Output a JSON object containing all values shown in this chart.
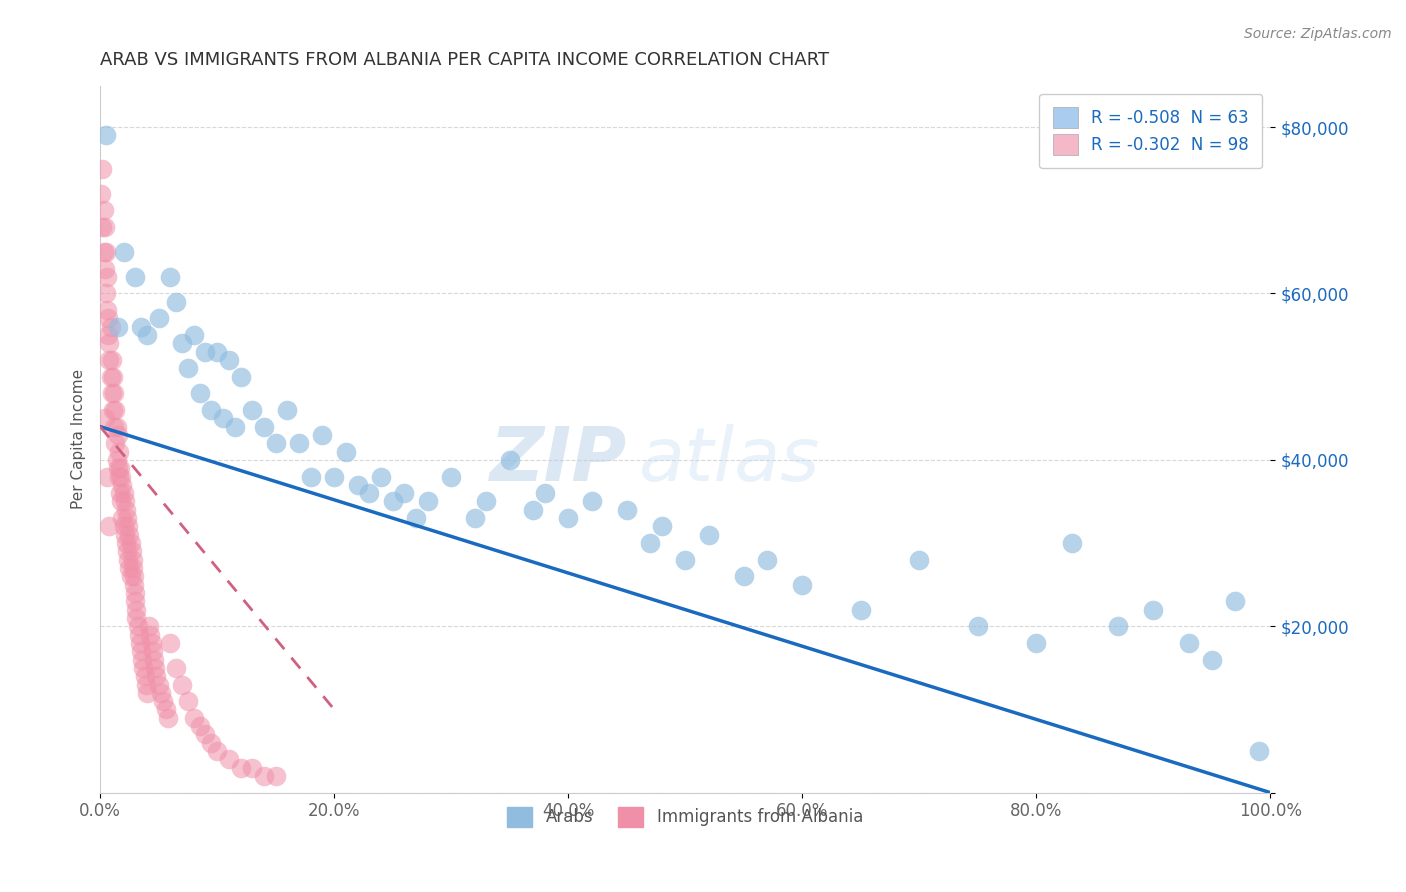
{
  "title": "ARAB VS IMMIGRANTS FROM ALBANIA PER CAPITA INCOME CORRELATION CHART",
  "source": "Source: ZipAtlas.com",
  "ylabel": "Per Capita Income",
  "xlabel": "",
  "xlim": [
    0,
    1.0
  ],
  "ylim": [
    0,
    85000
  ],
  "yticks": [
    0,
    20000,
    40000,
    60000,
    80000
  ],
  "ytick_labels": [
    "",
    "$20,000",
    "$40,000",
    "$60,000",
    "$80,000"
  ],
  "xtick_labels": [
    "0.0%",
    "20.0%",
    "40.0%",
    "60.0%",
    "80.0%",
    "100.0%"
  ],
  "xticks": [
    0,
    0.2,
    0.4,
    0.6,
    0.8,
    1.0
  ],
  "legend_entries": [
    {
      "label": "R = -0.508  N = 63",
      "facecolor": "#aaccee",
      "series": "Arabs"
    },
    {
      "label": "R = -0.302  N = 98",
      "facecolor": "#f4b8c8",
      "series": "Immigrants from Albania"
    }
  ],
  "arab_scatter_color": "#90bce0",
  "albania_scatter_color": "#f090a8",
  "arab_line_color": "#1a6abf",
  "albania_line_color": "#d06080",
  "watermark_zip": "ZIP",
  "watermark_atlas": "atlas",
  "watermark_color": "#c8ddf0",
  "background_color": "#ffffff",
  "grid_color": "#d8d8d8",
  "title_color": "#333333",
  "title_fontsize": 13,
  "arab_x": [
    0.005,
    0.015,
    0.02,
    0.03,
    0.035,
    0.04,
    0.05,
    0.06,
    0.065,
    0.07,
    0.075,
    0.08,
    0.085,
    0.09,
    0.095,
    0.1,
    0.105,
    0.11,
    0.115,
    0.12,
    0.13,
    0.14,
    0.15,
    0.16,
    0.17,
    0.18,
    0.19,
    0.2,
    0.21,
    0.22,
    0.23,
    0.24,
    0.25,
    0.26,
    0.27,
    0.28,
    0.3,
    0.32,
    0.33,
    0.35,
    0.37,
    0.38,
    0.4,
    0.42,
    0.45,
    0.47,
    0.48,
    0.5,
    0.52,
    0.55,
    0.57,
    0.6,
    0.65,
    0.7,
    0.75,
    0.8,
    0.83,
    0.87,
    0.9,
    0.93,
    0.95,
    0.97,
    0.99
  ],
  "arab_y": [
    79000,
    56000,
    65000,
    62000,
    56000,
    55000,
    57000,
    62000,
    59000,
    54000,
    51000,
    55000,
    48000,
    53000,
    46000,
    53000,
    45000,
    52000,
    44000,
    50000,
    46000,
    44000,
    42000,
    46000,
    42000,
    38000,
    43000,
    38000,
    41000,
    37000,
    36000,
    38000,
    35000,
    36000,
    33000,
    35000,
    38000,
    33000,
    35000,
    40000,
    34000,
    36000,
    33000,
    35000,
    34000,
    30000,
    32000,
    28000,
    31000,
    26000,
    28000,
    25000,
    22000,
    28000,
    20000,
    18000,
    30000,
    20000,
    22000,
    18000,
    16000,
    23000,
    5000
  ],
  "albania_x": [
    0.001,
    0.002,
    0.003,
    0.003,
    0.004,
    0.004,
    0.005,
    0.005,
    0.006,
    0.006,
    0.007,
    0.007,
    0.008,
    0.008,
    0.009,
    0.009,
    0.01,
    0.01,
    0.011,
    0.011,
    0.012,
    0.012,
    0.013,
    0.013,
    0.014,
    0.014,
    0.015,
    0.015,
    0.016,
    0.016,
    0.017,
    0.017,
    0.018,
    0.018,
    0.019,
    0.019,
    0.02,
    0.02,
    0.021,
    0.021,
    0.022,
    0.022,
    0.023,
    0.023,
    0.024,
    0.024,
    0.025,
    0.025,
    0.026,
    0.026,
    0.027,
    0.028,
    0.028,
    0.029,
    0.029,
    0.03,
    0.03,
    0.031,
    0.031,
    0.032,
    0.033,
    0.034,
    0.035,
    0.036,
    0.037,
    0.038,
    0.039,
    0.04,
    0.042,
    0.043,
    0.044,
    0.045,
    0.046,
    0.047,
    0.048,
    0.05,
    0.052,
    0.054,
    0.056,
    0.058,
    0.06,
    0.065,
    0.07,
    0.075,
    0.08,
    0.085,
    0.09,
    0.095,
    0.1,
    0.11,
    0.12,
    0.13,
    0.14,
    0.15,
    0.004,
    0.006,
    0.008,
    0.002
  ],
  "albania_y": [
    72000,
    68000,
    65000,
    70000,
    63000,
    68000,
    60000,
    65000,
    62000,
    58000,
    57000,
    55000,
    54000,
    52000,
    56000,
    50000,
    52000,
    48000,
    50000,
    46000,
    48000,
    44000,
    46000,
    42000,
    44000,
    40000,
    43000,
    39000,
    41000,
    38000,
    39000,
    36000,
    38000,
    35000,
    37000,
    33000,
    36000,
    32000,
    35000,
    31000,
    34000,
    30000,
    33000,
    29000,
    32000,
    28000,
    31000,
    27000,
    30000,
    26000,
    29000,
    28000,
    27000,
    26000,
    25000,
    24000,
    23000,
    22000,
    21000,
    20000,
    19000,
    18000,
    17000,
    16000,
    15000,
    14000,
    13000,
    12000,
    20000,
    19000,
    18000,
    17000,
    16000,
    15000,
    14000,
    13000,
    12000,
    11000,
    10000,
    9000,
    18000,
    15000,
    13000,
    11000,
    9000,
    8000,
    7000,
    6000,
    5000,
    4000,
    3000,
    3000,
    2000,
    2000,
    45000,
    38000,
    32000,
    75000
  ],
  "arab_line_x0": 0.0,
  "arab_line_y0": 44000,
  "arab_line_x1": 1.0,
  "arab_line_y1": 0,
  "albania_line_x0": 0.0,
  "albania_line_y0": 44000,
  "albania_line_x1": 0.2,
  "albania_line_y1": 10000
}
